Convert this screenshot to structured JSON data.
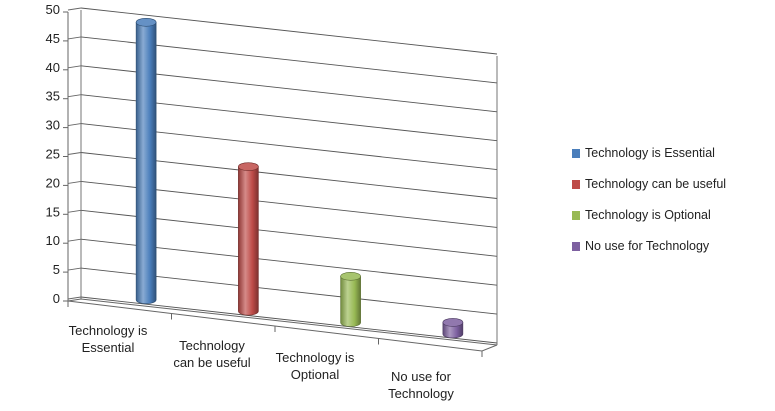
{
  "chart_data": {
    "type": "bar",
    "style": "3d-cylinder",
    "title": "",
    "xlabel": "",
    "ylabel": "",
    "ylim": [
      0,
      50
    ],
    "yticks": [
      0,
      5,
      10,
      15,
      20,
      25,
      30,
      35,
      40,
      45,
      50
    ],
    "grid": true,
    "legend_position": "right",
    "categories": [
      [
        "Technology is",
        "Essential"
      ],
      [
        "Technology",
        "can be useful"
      ],
      [
        "Technology is",
        "Optional"
      ],
      [
        "No use for",
        "Technology"
      ]
    ],
    "series": [
      {
        "name": "Technology is Essential",
        "color": "#4a7ebb",
        "values": [
          48,
          0,
          0,
          0
        ]
      },
      {
        "name": "Technology can be useful",
        "color": "#be4b48",
        "values": [
          0,
          25,
          0,
          0
        ]
      },
      {
        "name": "Technology is Optional",
        "color": "#98b954",
        "values": [
          0,
          0,
          8,
          0
        ]
      },
      {
        "name": "No use for Technology",
        "color": "#7d60a0",
        "values": [
          0,
          0,
          0,
          2
        ]
      }
    ]
  }
}
